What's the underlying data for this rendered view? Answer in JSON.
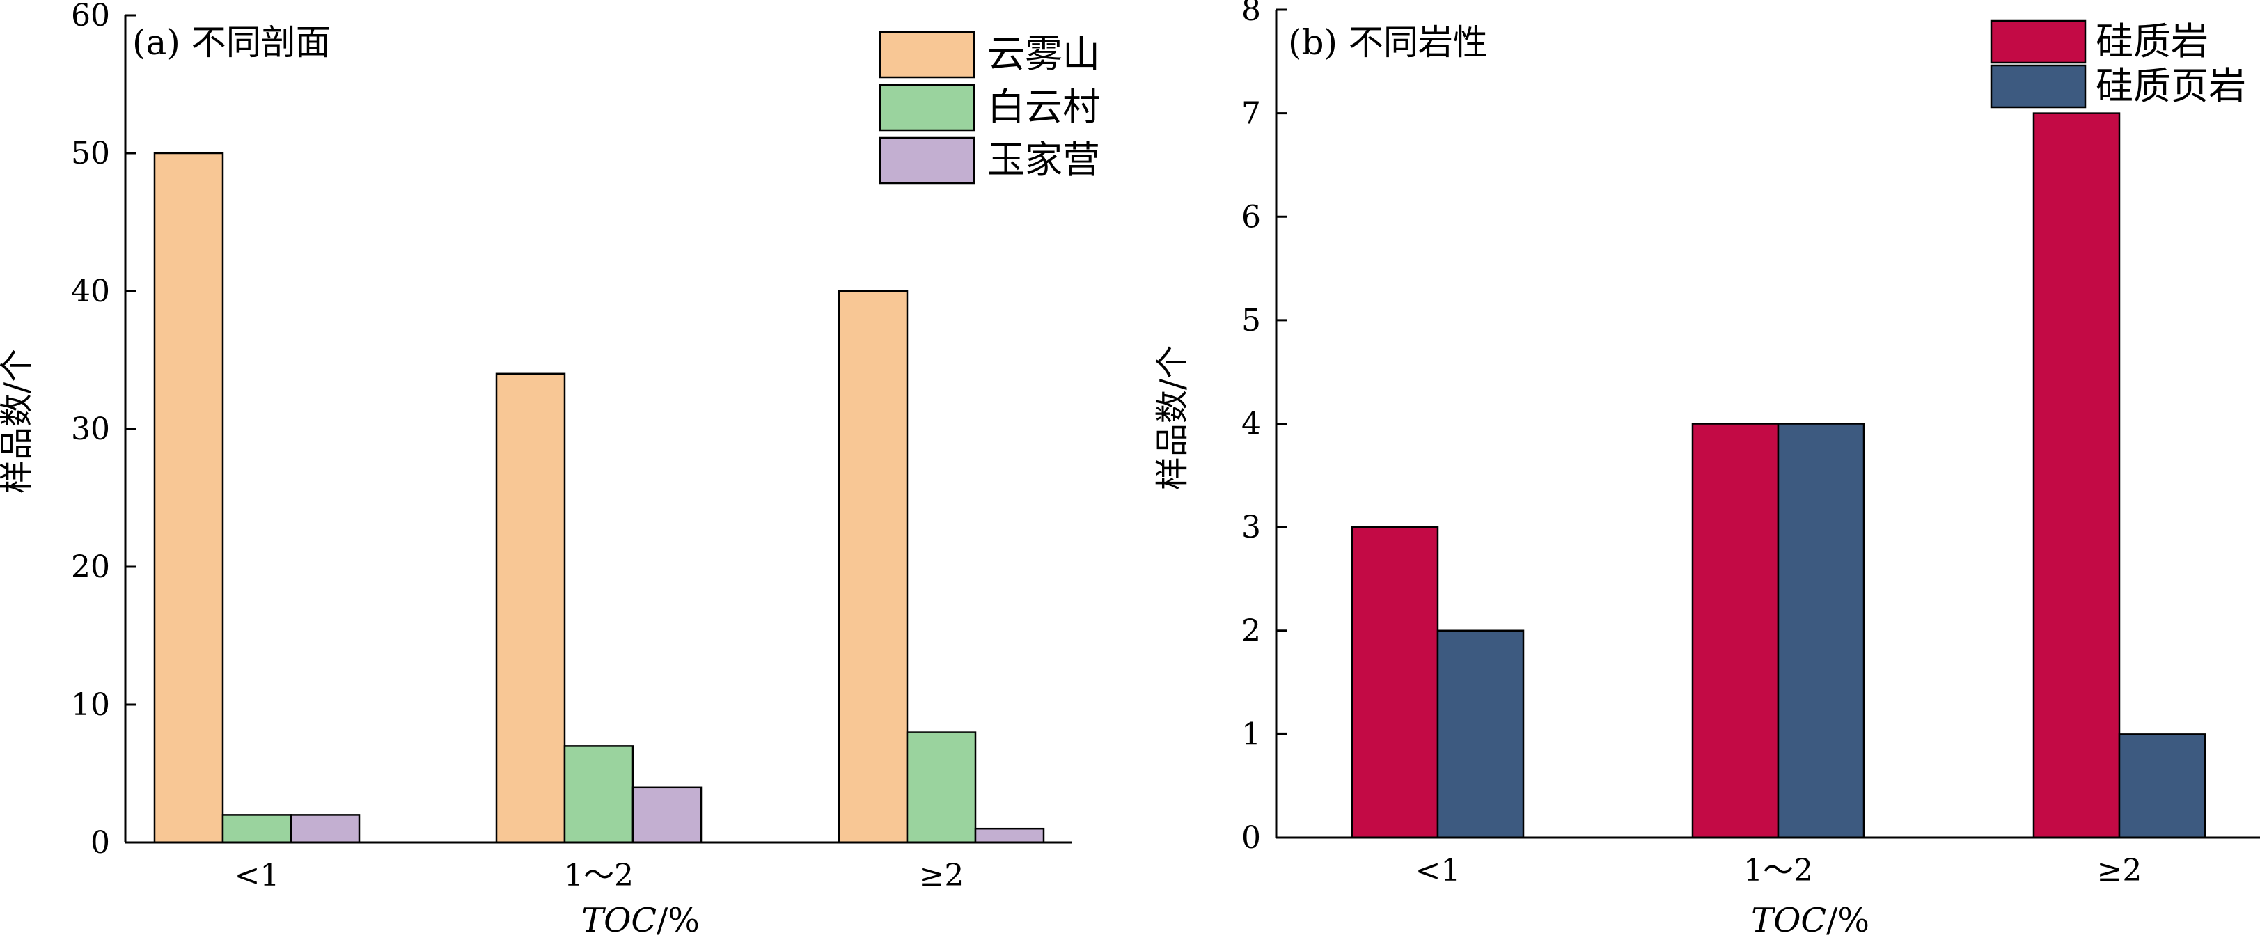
{
  "chart_data": [
    {
      "type": "bar",
      "title": "(a) 不同剖面",
      "xlabel": "TOC/%",
      "ylabel": "样品数/个",
      "categories": [
        "<1",
        "1～2",
        "≥2"
      ],
      "series": [
        {
          "name": "云雾山",
          "values": [
            50,
            34,
            40
          ],
          "color": "#f8c795"
        },
        {
          "name": "白云村",
          "values": [
            2,
            7,
            8
          ],
          "color": "#9ad39e"
        },
        {
          "name": "玉家营",
          "values": [
            2,
            4,
            1
          ],
          "color": "#c3afd1"
        }
      ],
      "ylim": [
        0,
        60
      ],
      "yticks": [
        "0",
        "10",
        "20",
        "30",
        "40",
        "50",
        "60"
      ],
      "legend": "top-right",
      "grid": false
    },
    {
      "type": "bar",
      "title": "(b) 不同岩性",
      "xlabel": "TOC/%",
      "ylabel": "样品数/个",
      "categories": [
        "<1",
        "1～2",
        "≥2"
      ],
      "series": [
        {
          "name": "硅质岩",
          "values": [
            3,
            4,
            7
          ],
          "color": "#c30a45"
        },
        {
          "name": "硅质页岩",
          "values": [
            2,
            4,
            1
          ],
          "color": "#3d5a80"
        }
      ],
      "ylim": [
        0,
        8
      ],
      "yticks": [
        "0",
        "1",
        "2",
        "3",
        "4",
        "5",
        "6",
        "7",
        "8"
      ],
      "legend": "top-right",
      "grid": false
    }
  ]
}
